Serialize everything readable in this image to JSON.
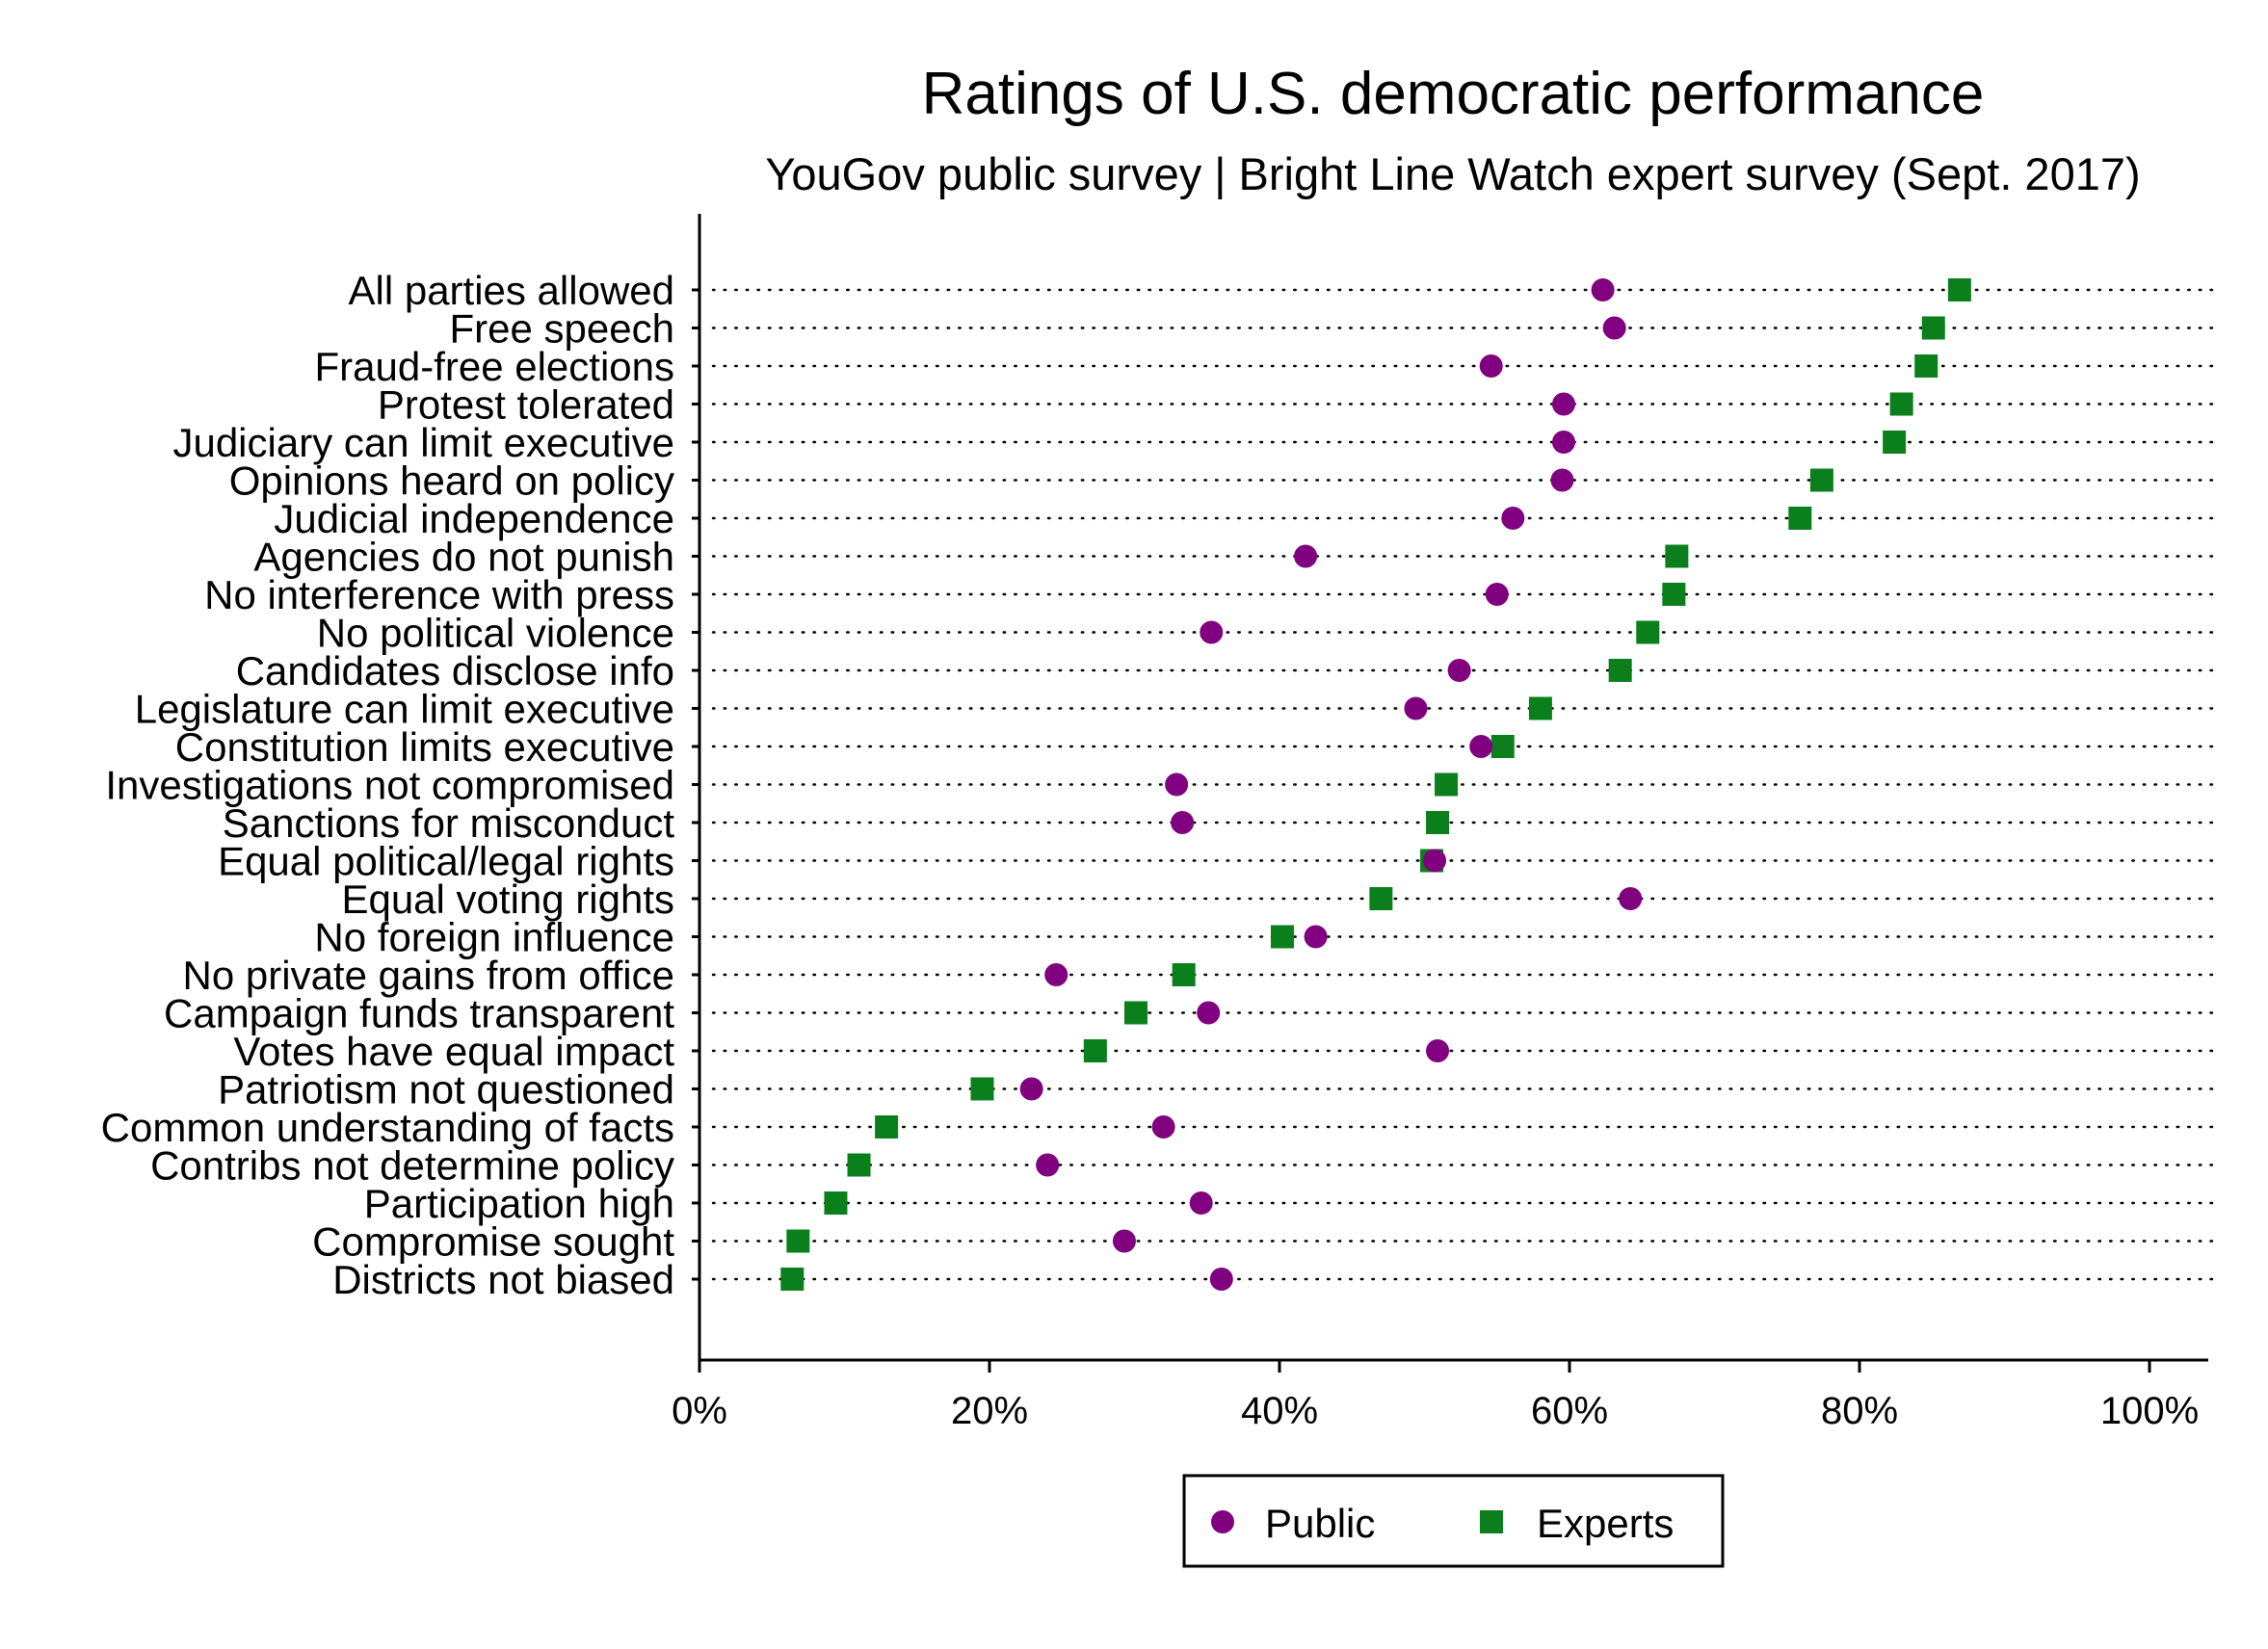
{
  "chart_data": {
    "type": "scatter",
    "title": "Ratings of U.S. democratic performance",
    "subtitle": "YouGov public survey | Bright Line Watch expert survey (Sept. 2017)",
    "xlabel": "",
    "ylabel": "",
    "xlim": [
      0,
      100
    ],
    "x_ticks": [
      0,
      20,
      40,
      60,
      80,
      100
    ],
    "x_tick_labels": [
      "0%",
      "20%",
      "40%",
      "60%",
      "80%",
      "100%"
    ],
    "grid": true,
    "legend_position": "bottom",
    "categories": [
      "All parties allowed",
      "Free speech",
      "Fraud-free elections",
      "Protest tolerated",
      "Judiciary can limit executive",
      "Opinions heard on policy",
      "Judicial independence",
      "Agencies do not punish",
      "No interference with press",
      "No political violence",
      "Candidates disclose info",
      "Legislature can limit executive",
      "Constitution limits executive",
      "Investigations not compromised",
      "Sanctions for misconduct",
      "Equal political/legal rights",
      "Equal voting rights",
      "No foreign influence",
      "No private gains from office",
      "Campaign funds transparent",
      "Votes have equal impact",
      "Patriotism not questioned",
      "Common understanding of facts",
      "Contribs not determine policy",
      "Participation high",
      "Compromise sought",
      "Districts not biased"
    ],
    "series": [
      {
        "name": "Public",
        "marker": "circle",
        "color": "#800080",
        "values": [
          62.3,
          63.1,
          54.6,
          59.6,
          59.6,
          59.5,
          56.1,
          41.8,
          55.0,
          35.3,
          52.4,
          49.4,
          53.9,
          32.9,
          33.3,
          50.7,
          64.2,
          42.5,
          24.6,
          35.1,
          50.9,
          22.9,
          32.0,
          24.0,
          34.6,
          29.3,
          36.0
        ]
      },
      {
        "name": "Experts",
        "marker": "square",
        "color": "#0a7f1c",
        "values": [
          86.9,
          85.1,
          84.6,
          82.9,
          82.4,
          77.4,
          75.9,
          67.4,
          67.2,
          65.4,
          63.5,
          58.0,
          55.4,
          51.5,
          50.9,
          50.5,
          47.0,
          40.2,
          33.4,
          30.1,
          27.3,
          19.5,
          12.9,
          11.0,
          9.4,
          6.8,
          6.4
        ]
      }
    ]
  }
}
